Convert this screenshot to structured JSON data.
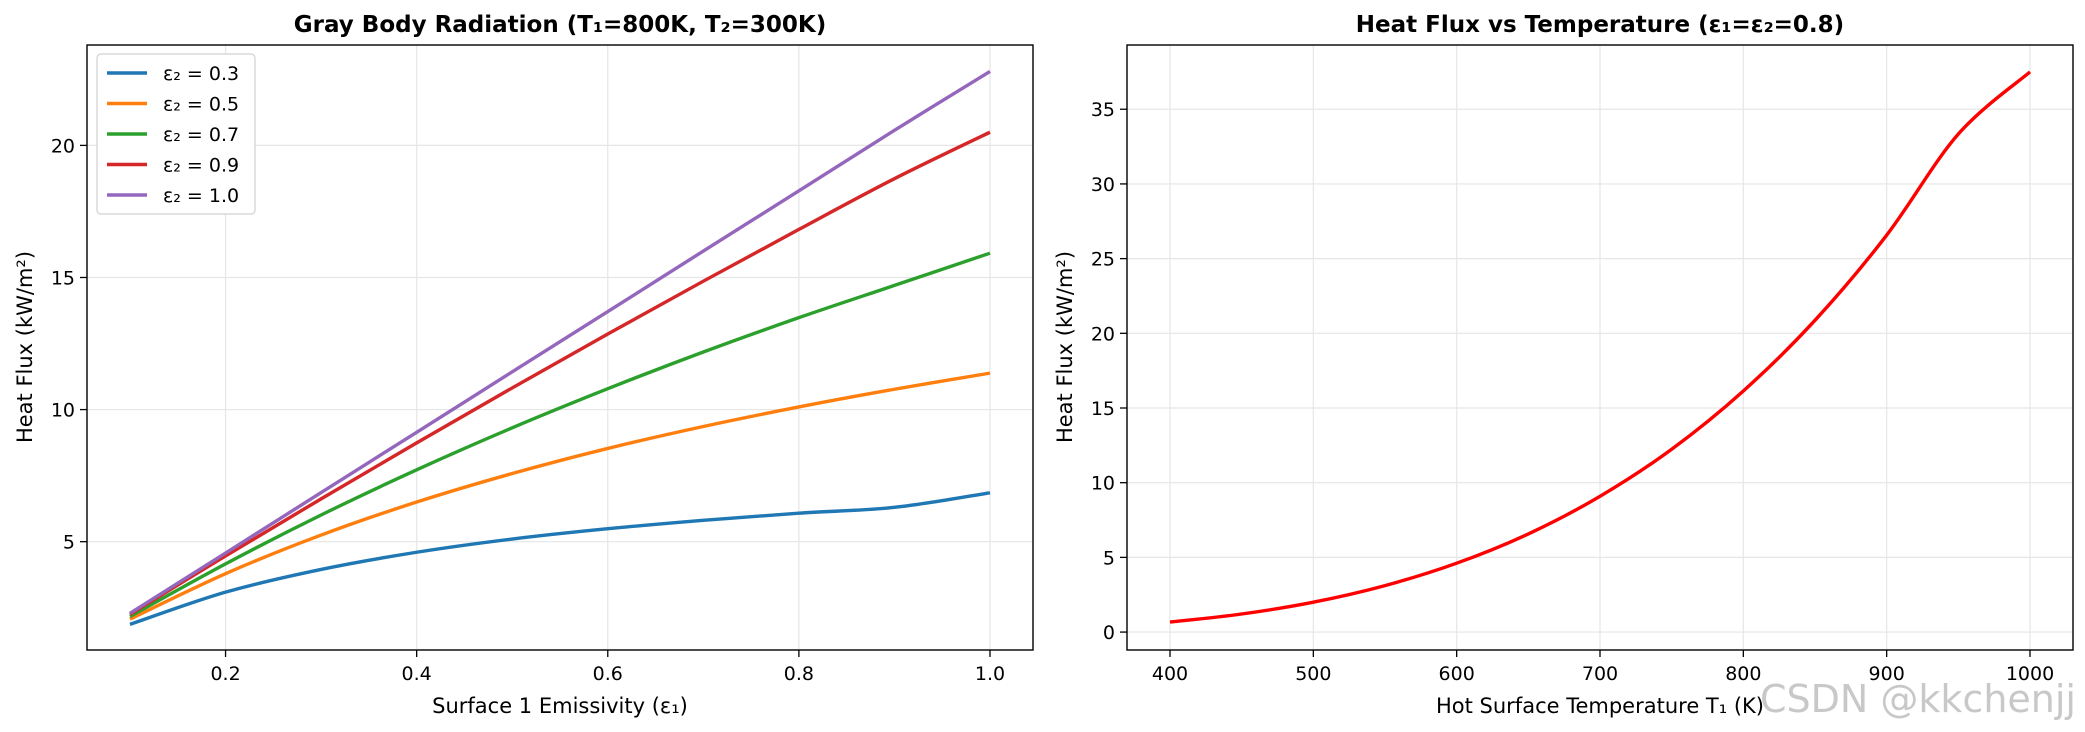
{
  "chart_data": [
    {
      "type": "line",
      "title": "Gray Body Radiation (T₁=800K, T₂=300K)",
      "xlabel": "Surface 1 Emissivity (ε₁)",
      "ylabel": "Heat Flux (kW/m²)",
      "xlim": [
        0.055,
        1.045
      ],
      "ylim": [
        0.9,
        23.8
      ],
      "xticks": [
        0.2,
        0.4,
        0.6,
        0.8,
        1.0
      ],
      "xtick_labels": [
        "0.2",
        "0.4",
        "0.6",
        "0.8",
        "1.0"
      ],
      "yticks": [
        5,
        10,
        15,
        20
      ],
      "ytick_labels": [
        "5",
        "10",
        "15",
        "20"
      ],
      "grid": true,
      "legend_position": "upper-left",
      "x": [
        0.1,
        0.2,
        0.3,
        0.4,
        0.5,
        0.6,
        0.7,
        0.8,
        0.9,
        1.0
      ],
      "series": [
        {
          "name": "ε₂ = 0.3",
          "color": "#1f77b4",
          "values": [
            1.87,
            3.09,
            3.95,
            4.6,
            5.1,
            5.49,
            5.81,
            6.08,
            6.3,
            6.85
          ]
        },
        {
          "name": "ε₂ = 0.5",
          "color": "#ff7f0e",
          "values": [
            2.07,
            3.79,
            5.25,
            6.5,
            7.58,
            8.53,
            9.36,
            10.1,
            10.77,
            11.38
          ]
        },
        {
          "name": "ε₂ = 0.7",
          "color": "#2ca02c",
          "values": [
            2.17,
            4.16,
            6.01,
            7.72,
            9.31,
            10.79,
            12.18,
            13.48,
            14.7,
            15.92
          ]
        },
        {
          "name": "ε₂ = 0.9",
          "color": "#d62728",
          "values": [
            2.25,
            4.46,
            6.62,
            8.74,
            10.82,
            12.86,
            14.86,
            16.82,
            18.74,
            20.5
          ]
        },
        {
          "name": "ε₂ = 1.0",
          "color": "#9467bd",
          "values": [
            2.29,
            4.57,
            6.86,
            9.14,
            11.43,
            13.71,
            16.0,
            18.28,
            20.57,
            22.8
          ]
        }
      ]
    },
    {
      "type": "line",
      "title": "Heat Flux vs Temperature (ε₁=ε₂=0.8)",
      "xlabel": "Hot Surface Temperature T₁ (K)",
      "ylabel": "Heat Flux (kW/m²)",
      "xlim": [
        370,
        1030
      ],
      "ylim": [
        -1.2,
        39.3
      ],
      "xticks": [
        400,
        500,
        600,
        700,
        800,
        900,
        1000
      ],
      "xtick_labels": [
        "400",
        "500",
        "600",
        "700",
        "800",
        "900",
        "1000"
      ],
      "yticks": [
        0,
        5,
        10,
        15,
        20,
        25,
        30,
        35
      ],
      "ytick_labels": [
        "0",
        "5",
        "10",
        "15",
        "20",
        "25",
        "30",
        "35"
      ],
      "grid": true,
      "x": [
        400,
        450,
        500,
        550,
        600,
        650,
        700,
        750,
        800,
        850,
        900,
        950,
        1000
      ],
      "series": [
        {
          "color": "#ff0000",
          "values": [
            0.67,
            1.21,
            2.0,
            3.11,
            4.61,
            6.57,
            9.09,
            12.24,
            16.14,
            20.87,
            26.57,
            33.34,
            37.5
          ]
        }
      ]
    }
  ],
  "watermark": "CSDN @kkchenjj"
}
